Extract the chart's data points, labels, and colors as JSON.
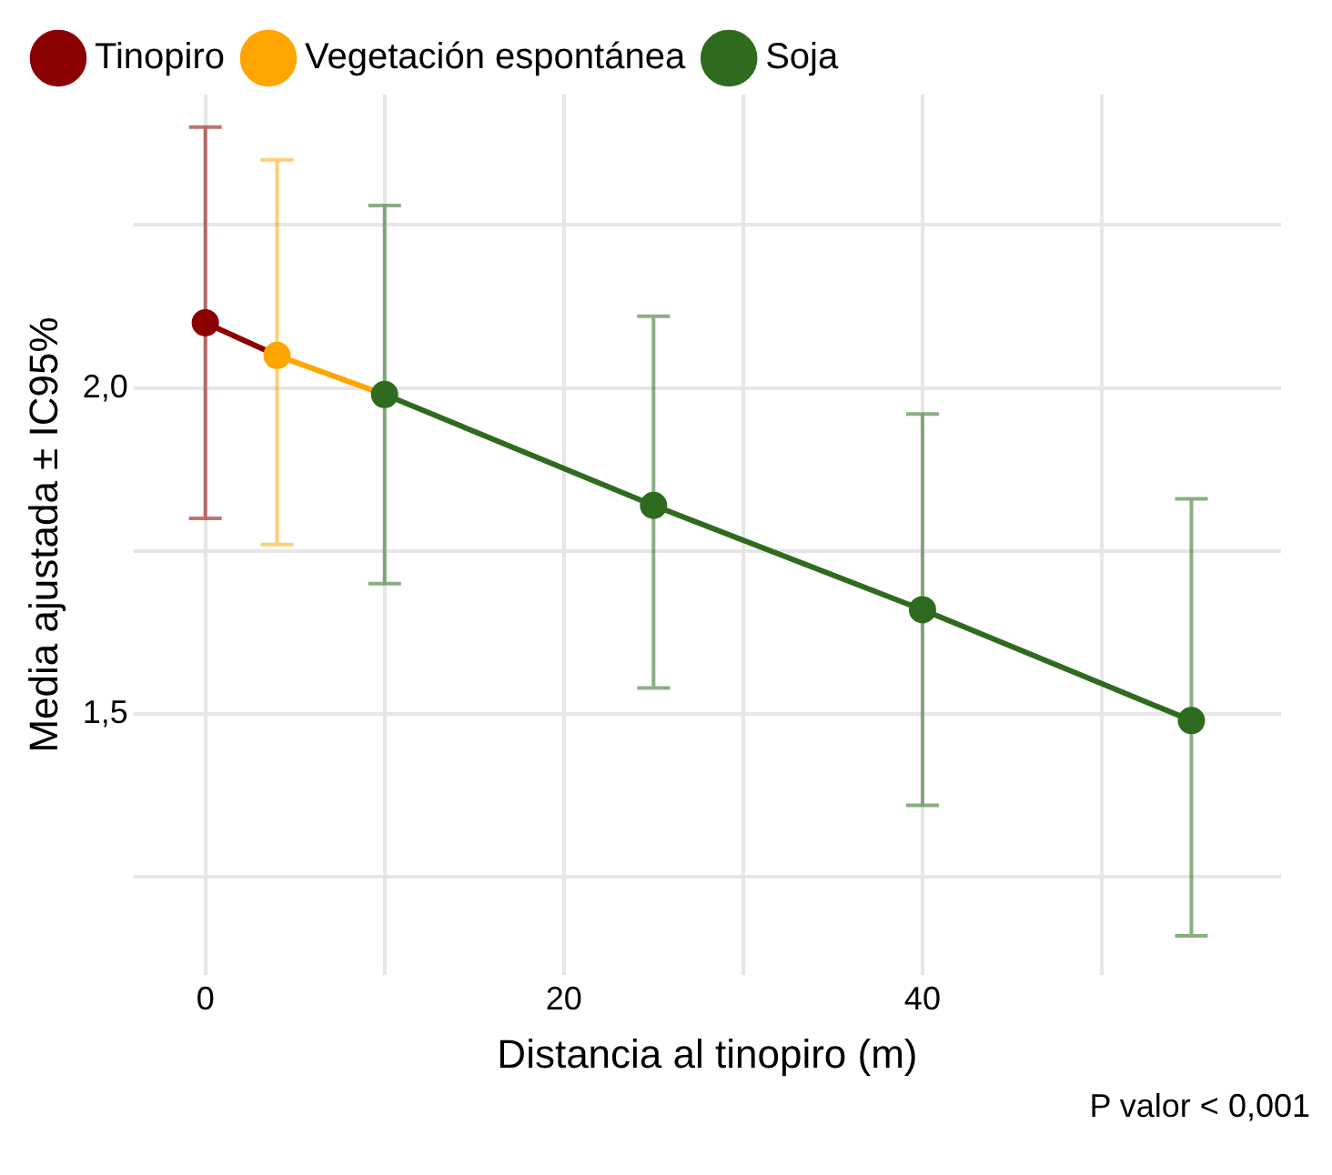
{
  "chart_data": {
    "type": "line",
    "xlabel": "Distancia al tinopiro (m)",
    "ylabel": "Media ajustada ± IC95%",
    "series": [
      {
        "name": "Tinopiro",
        "color": "#8b0000",
        "x": [
          0,
          4
        ],
        "values": [
          2.1,
          2.05
        ],
        "errors": [
          [
            1.8,
            2.4
          ],
          null
        ]
      },
      {
        "name": "Vegetación espontánea",
        "color": "#ffa500",
        "x": [
          4,
          10
        ],
        "values": [
          2.05,
          1.99
        ],
        "errors": [
          [
            1.76,
            2.35
          ],
          null
        ]
      },
      {
        "name": "Soja",
        "color": "#2e6b1f",
        "x": [
          10,
          25,
          40,
          55
        ],
        "values": [
          1.99,
          1.82,
          1.66,
          1.49
        ],
        "errors": [
          [
            1.7,
            2.28
          ],
          [
            1.54,
            2.11
          ],
          [
            1.36,
            1.96
          ],
          [
            1.16,
            1.83
          ]
        ]
      }
    ],
    "xlim": [
      -4,
      60
    ],
    "xticks": [
      0,
      {
        "value": 10,
        "label": null
      },
      20,
      {
        "value": 30,
        "label": null
      },
      40,
      {
        "value": 50,
        "label": null
      }
    ],
    "ylim": [
      1.1,
      2.45
    ],
    "yticks": [
      {
        "value": 1.25,
        "label": null
      },
      {
        "value": 1.5,
        "label": "1,5"
      },
      {
        "value": 1.75,
        "label": null
      },
      {
        "value": 2.0,
        "label": "2,0"
      },
      {
        "value": 2.25,
        "label": null
      }
    ],
    "grid": true,
    "legend": "top",
    "marker": "circle",
    "line_style": "solid",
    "annotations": [
      "P valor < 0,001"
    ]
  }
}
